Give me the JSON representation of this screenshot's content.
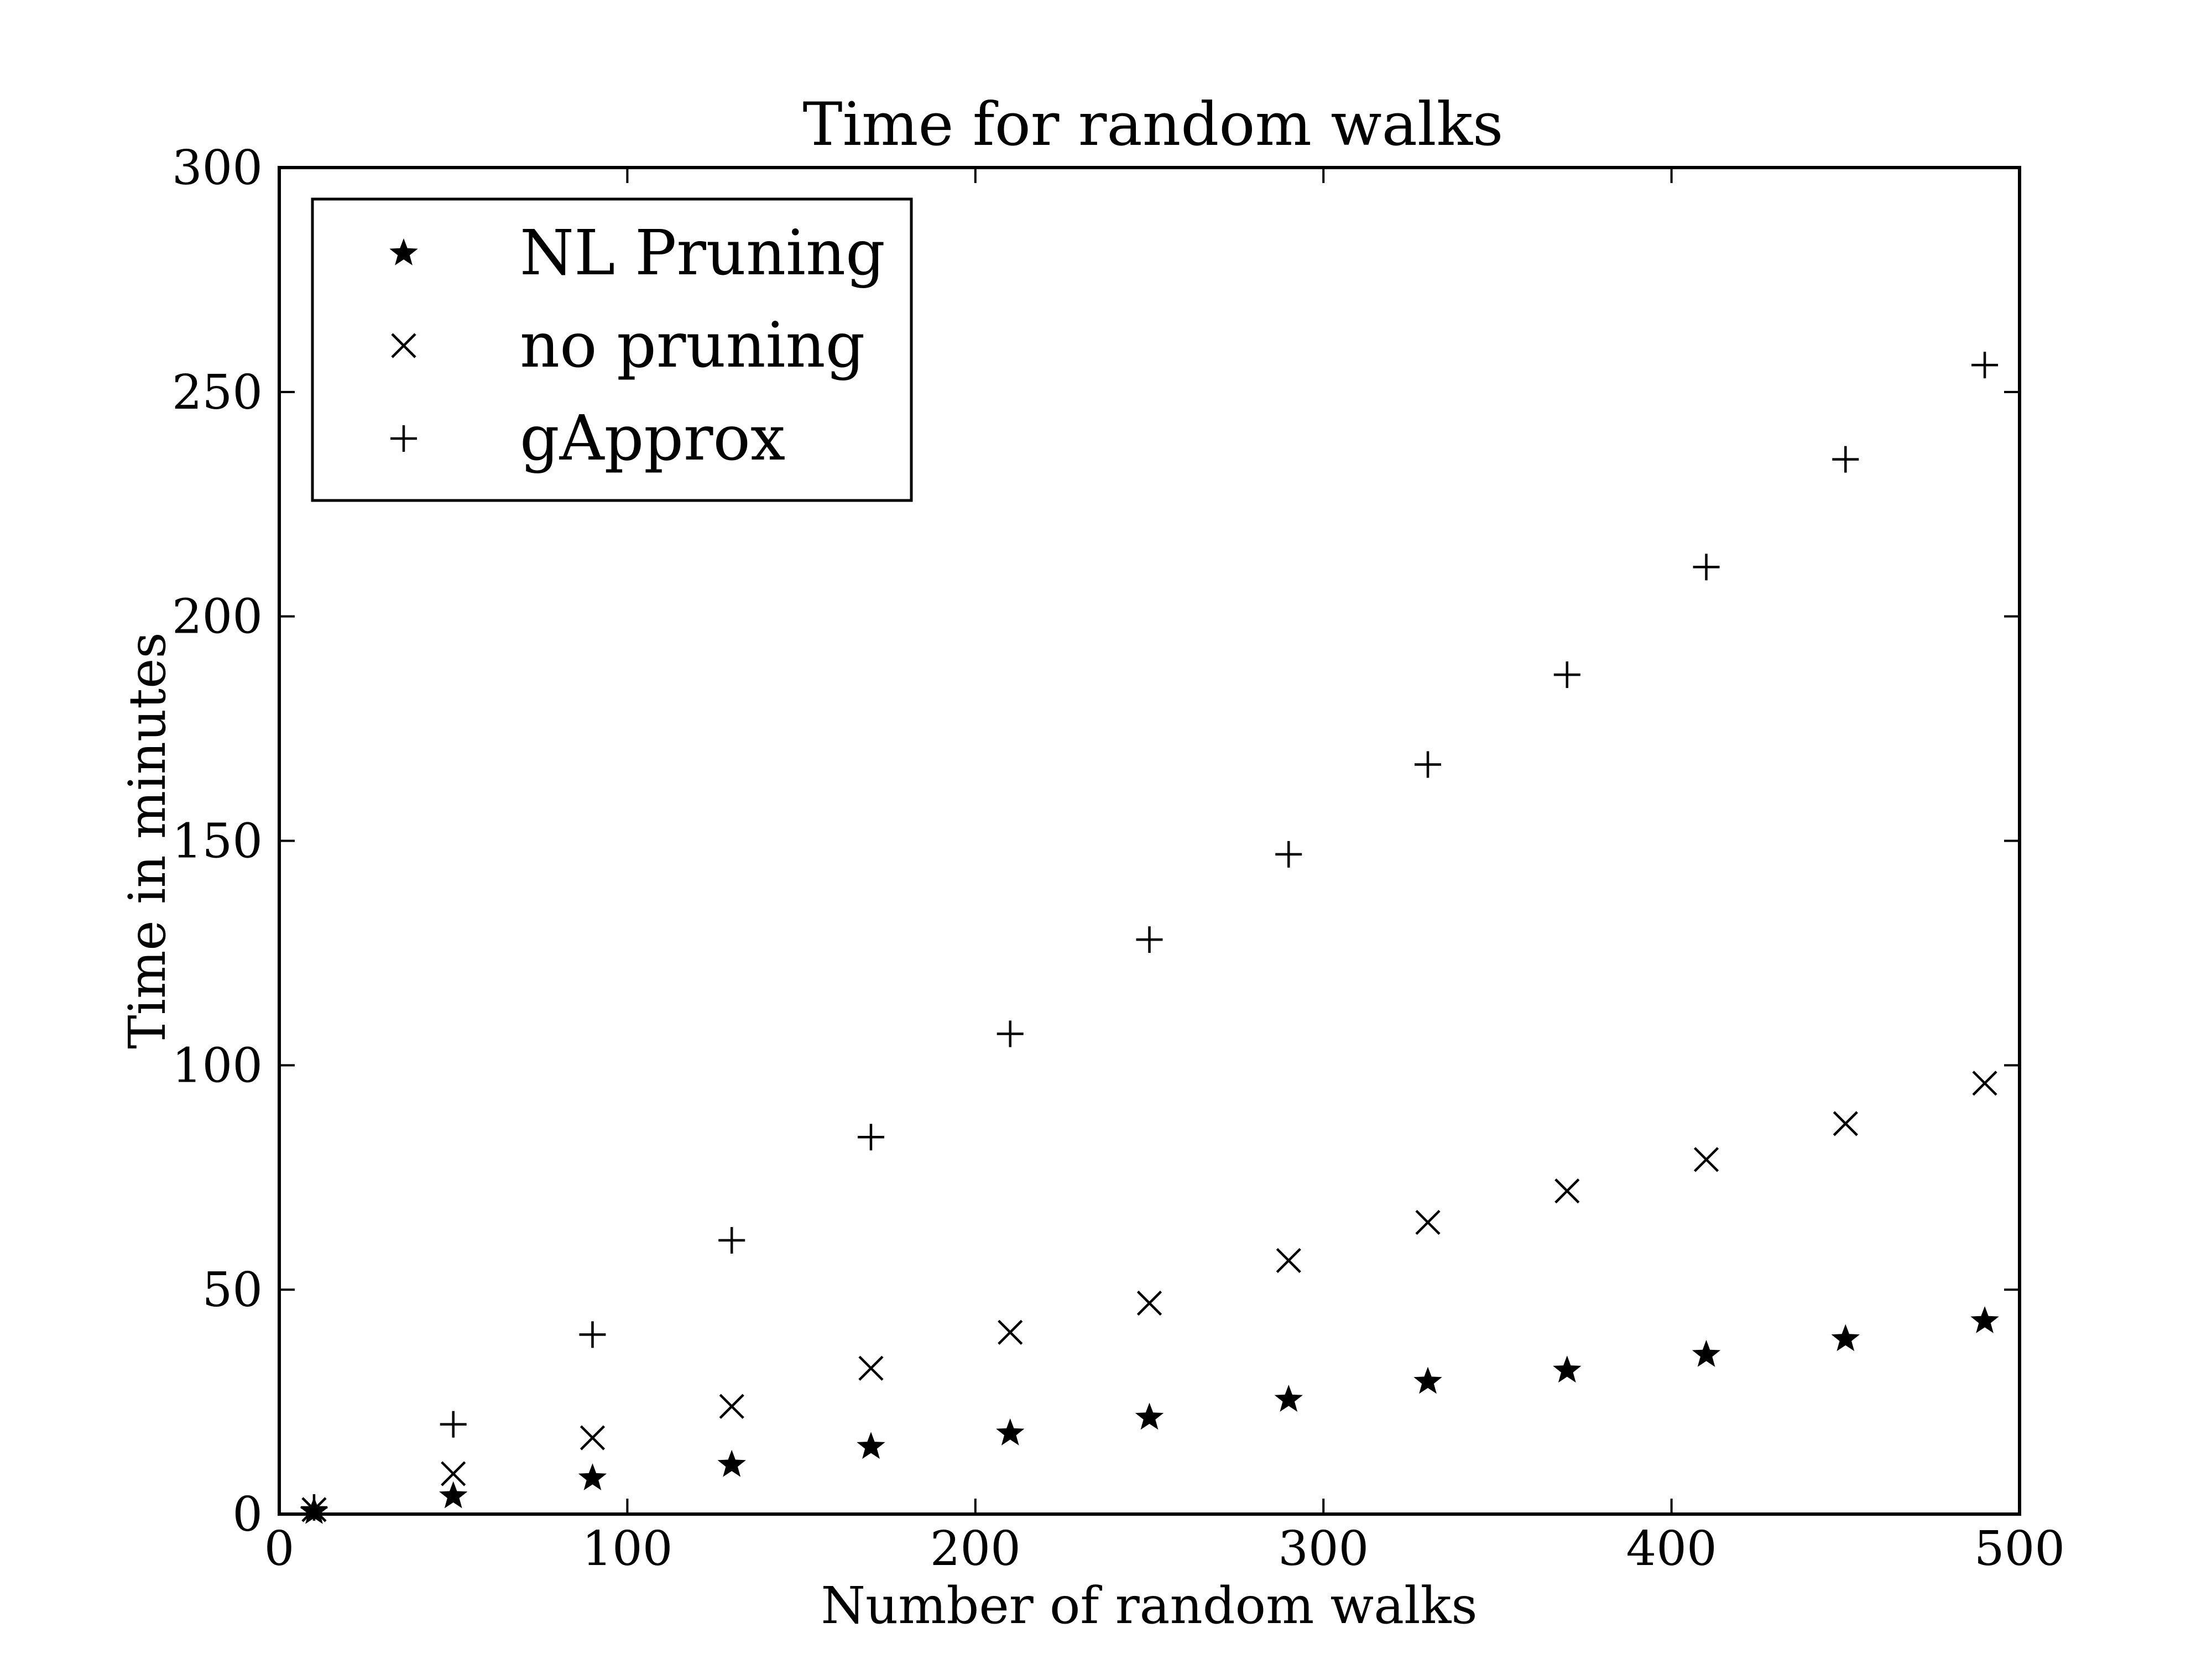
{
  "chart_data": {
    "type": "scatter",
    "title": "Time for random walks",
    "xlabel": "Number of random walks",
    "ylabel": "Time in minutes",
    "xlim": [
      0,
      500
    ],
    "ylim": [
      0,
      300
    ],
    "xticks": [
      0,
      100,
      200,
      300,
      400,
      500
    ],
    "yticks": [
      0,
      50,
      100,
      150,
      200,
      250,
      300
    ],
    "grid": false,
    "legend_position": "top-left",
    "x": [
      10,
      50,
      90,
      130,
      170,
      210,
      250,
      290,
      330,
      370,
      410,
      450,
      490
    ],
    "series": [
      {
        "name": "NL Pruning",
        "marker": "star",
        "color": "#000000",
        "values": [
          0.5,
          4,
          8,
          11,
          15,
          18,
          21.5,
          25.5,
          29.5,
          32,
          35.5,
          39,
          43
        ]
      },
      {
        "name": "no pruning",
        "marker": "x",
        "color": "#000000",
        "values": [
          1,
          9,
          17,
          24,
          32.5,
          40.5,
          47,
          56.5,
          65,
          72,
          79,
          87,
          96
        ]
      },
      {
        "name": "gApprox",
        "marker": "plus",
        "color": "#000000",
        "values": [
          1.5,
          20,
          40,
          61,
          84,
          107,
          128,
          147,
          167,
          187,
          211,
          235,
          256
        ]
      }
    ]
  }
}
